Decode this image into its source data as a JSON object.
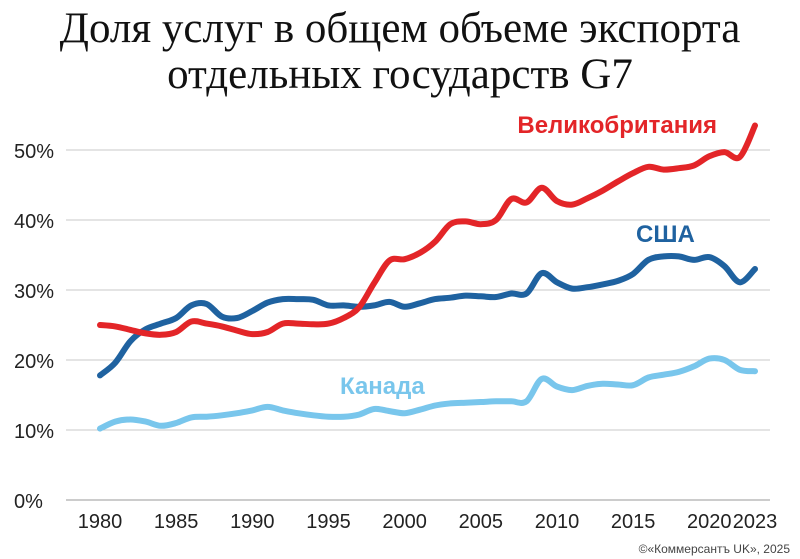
{
  "title_line1": "Доля услуг в общем объеме экспорта",
  "title_line2": "отдельных государств G7",
  "credit": "©«Коммерсантъ UK», 2025",
  "colors": {
    "uk": "#e32528",
    "usa": "#1f62a0",
    "canada": "#79c6ec",
    "grid": "#c8c8c8"
  },
  "chart_data": {
    "type": "line",
    "title": "Доля услуг в общем объеме экспорта отдельных государств G7",
    "xlabel": "",
    "ylabel": "",
    "xlim": [
      1980,
      2023
    ],
    "ylim": [
      0,
      55
    ],
    "x_ticks": [
      1980,
      1985,
      1990,
      1995,
      2000,
      2005,
      2010,
      2015,
      2020,
      2023
    ],
    "x_tick_labels": [
      "1980",
      "1985",
      "1990",
      "1995",
      "2000",
      "2005",
      "2010",
      "2015",
      "2020",
      "2023"
    ],
    "y_ticks": [
      0,
      10,
      20,
      30,
      40,
      50
    ],
    "y_tick_labels": [
      "0%",
      "10%",
      "20%",
      "30%",
      "40%",
      "50%"
    ],
    "grid": "horizontal",
    "series": [
      {
        "name": "Великобритания",
        "color": "#e32528",
        "x": [
          1980,
          1981,
          1982,
          1983,
          1984,
          1985,
          1986,
          1987,
          1988,
          1989,
          1990,
          1991,
          1992,
          1993,
          1994,
          1995,
          1996,
          1997,
          1998,
          1999,
          2000,
          2001,
          2002,
          2003,
          2004,
          2005,
          2006,
          2007,
          2008,
          2009,
          2010,
          2011,
          2012,
          2013,
          2014,
          2015,
          2016,
          2017,
          2018,
          2019,
          2020,
          2021,
          2022,
          2023
        ],
        "y": [
          25,
          24.8,
          24.3,
          23.8,
          23.6,
          24,
          25.5,
          25.2,
          24.8,
          24.2,
          23.7,
          24,
          25.2,
          25.2,
          25.1,
          25.2,
          26,
          27.5,
          31,
          34.2,
          34.4,
          35.3,
          36.9,
          39.4,
          39.8,
          39.4,
          40,
          43,
          42.5,
          44.6,
          42.7,
          42.2,
          43.1,
          44.2,
          45.5,
          46.7,
          47.6,
          47.2,
          47.4,
          47.8,
          49.1,
          49.7,
          49,
          53.5
        ]
      },
      {
        "name": "США",
        "color": "#1f62a0",
        "x": [
          1980,
          1981,
          1982,
          1983,
          1984,
          1985,
          1986,
          1987,
          1988,
          1989,
          1990,
          1991,
          1992,
          1993,
          1994,
          1995,
          1996,
          1997,
          1998,
          1999,
          2000,
          2001,
          2002,
          2003,
          2004,
          2005,
          2006,
          2007,
          2008,
          2009,
          2010,
          2011,
          2012,
          2013,
          2014,
          2015,
          2016,
          2017,
          2018,
          2019,
          2020,
          2021,
          2022,
          2023
        ],
        "y": [
          17.8,
          19.6,
          22.7,
          24.4,
          25.2,
          26,
          27.8,
          28,
          26.2,
          26,
          27,
          28.2,
          28.7,
          28.7,
          28.6,
          27.8,
          27.8,
          27.6,
          27.8,
          28.3,
          27.6,
          28.1,
          28.7,
          28.9,
          29.2,
          29.1,
          29,
          29.5,
          29.5,
          32.4,
          31.1,
          30.2,
          30.4,
          30.8,
          31.3,
          32.3,
          34.3,
          34.8,
          34.8,
          34.3,
          34.7,
          33.4,
          31.1,
          33
        ]
      },
      {
        "name": "Канада",
        "color": "#79c6ec",
        "x": [
          1980,
          1981,
          1982,
          1983,
          1984,
          1985,
          1986,
          1987,
          1988,
          1989,
          1990,
          1991,
          1992,
          1993,
          1994,
          1995,
          1996,
          1997,
          1998,
          1999,
          2000,
          2001,
          2002,
          2003,
          2004,
          2005,
          2006,
          2007,
          2008,
          2009,
          2010,
          2011,
          2012,
          2013,
          2014,
          2015,
          2016,
          2017,
          2018,
          2019,
          2020,
          2021,
          2022,
          2023
        ],
        "y": [
          10.2,
          11.2,
          11.5,
          11.2,
          10.6,
          11,
          11.8,
          11.9,
          12.1,
          12.4,
          12.8,
          13.3,
          12.8,
          12.4,
          12.1,
          11.9,
          11.9,
          12.2,
          13,
          12.7,
          12.4,
          12.9,
          13.5,
          13.8,
          13.9,
          14,
          14.1,
          14.1,
          14.1,
          17.3,
          16.2,
          15.7,
          16.3,
          16.6,
          16.5,
          16.4,
          17.5,
          17.9,
          18.3,
          19.1,
          20.2,
          20,
          18.6,
          18.4
        ]
      }
    ],
    "labels": {
      "uk": "Великобритания",
      "usa": "США",
      "canada": "Канада"
    }
  }
}
